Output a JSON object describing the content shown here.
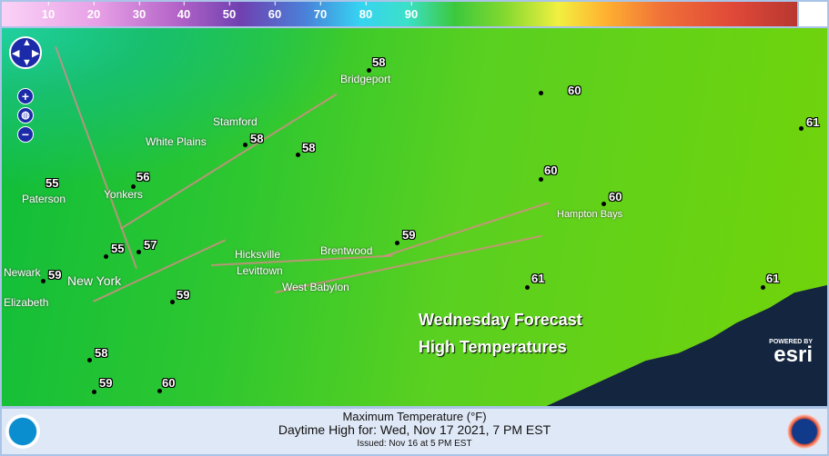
{
  "colorbar": {
    "ticks": [
      "10",
      "20",
      "30",
      "40",
      "50",
      "60",
      "70",
      "80",
      "90"
    ],
    "unit": "°F"
  },
  "controls": {
    "pan": "pan-control",
    "zoom_in": "+",
    "zoom_out": "−",
    "globe": "globe-icon"
  },
  "points": [
    {
      "value": "58",
      "label": "Bridgeport"
    },
    {
      "value": "60"
    },
    {
      "value": "61"
    },
    {
      "value": "58",
      "label": "Stamford"
    },
    {
      "value": "58"
    },
    {
      "value": "60"
    },
    {
      "value": "60",
      "label": "Hampton Bays"
    },
    {
      "value": "56",
      "label": "Yonkers"
    },
    {
      "value": "55",
      "label": "Paterson"
    },
    {
      "value": "57"
    },
    {
      "value": "55"
    },
    {
      "value": "59",
      "label": "Brentwood"
    },
    {
      "value": "59",
      "label": "Newark"
    },
    {
      "value": "61"
    },
    {
      "value": "61"
    },
    {
      "value": "59"
    },
    {
      "value": "58"
    },
    {
      "value": "59"
    },
    {
      "value": "60"
    }
  ],
  "places": [
    "White Plains",
    "New York",
    "Elizabeth",
    "Hicksville",
    "Levittown",
    "West Babylon"
  ],
  "overlay": {
    "line1": "Wednesday Forecast",
    "line2": "High Temperatures"
  },
  "esri": {
    "powered": "POWERED BY",
    "name": "esri"
  },
  "footer": {
    "title": "Maximum Temperature (°F)",
    "subtitle": "Daytime High for: Wed, Nov 17 2021,   7 PM EST",
    "issued": "Issued: Nov 16 at 5 PM EST",
    "left_logo": "NOAA",
    "right_logo": "National Weather Service"
  },
  "colors": {
    "ocean": "#14253f",
    "land_low": "#0fbd3a",
    "land_high": "#72d40a",
    "footer_bg": "#dfe8f6"
  }
}
